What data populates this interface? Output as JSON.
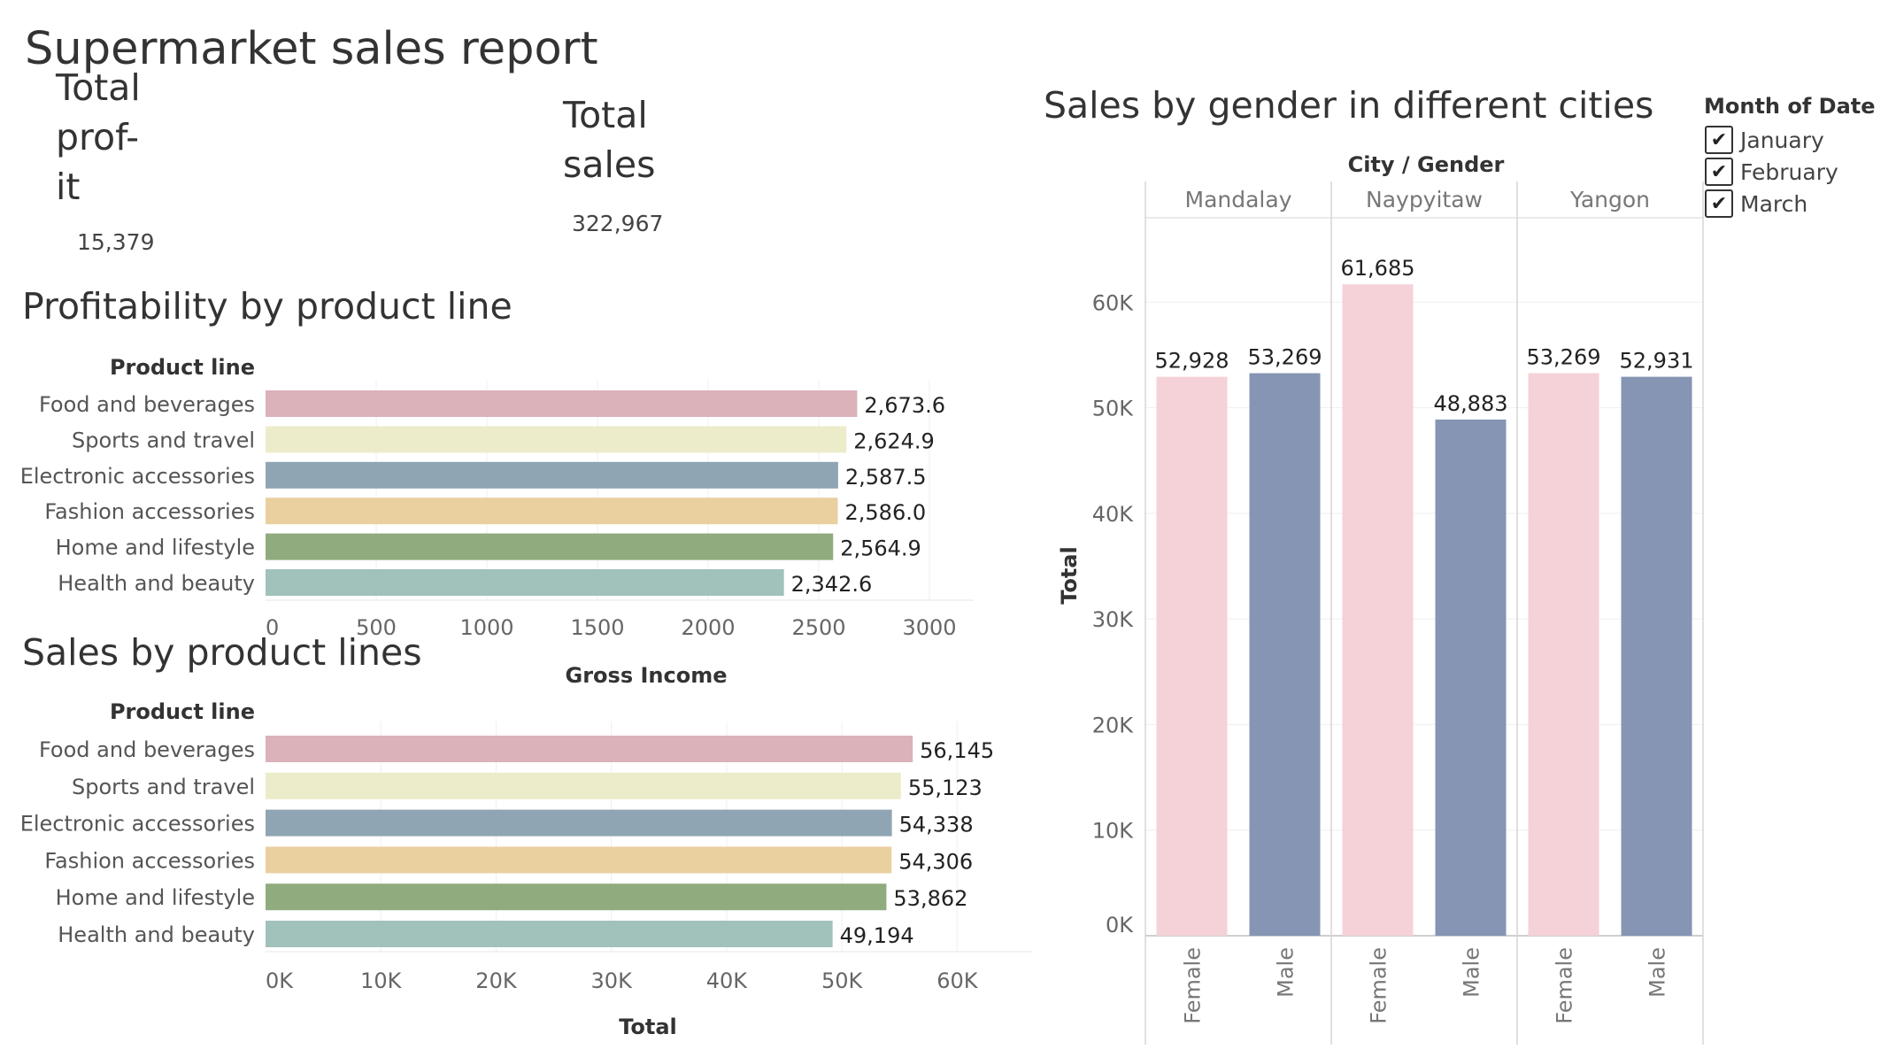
{
  "dashboard": {
    "title": "Supermarket sales report"
  },
  "kpis": {
    "profit": {
      "label_lines": [
        "Total",
        "prof-",
        "it"
      ],
      "value": "15,379"
    },
    "sales": {
      "label_lines": [
        "Total",
        "sales"
      ],
      "value": "322,967"
    }
  },
  "legend": {
    "title": "Month of Date",
    "items": [
      {
        "label": "January",
        "checked": true,
        "mark": "✔"
      },
      {
        "label": "February",
        "checked": true,
        "mark": "✔"
      },
      {
        "label": "March",
        "checked": true,
        "mark": "✔"
      }
    ]
  },
  "colors": {
    "product_lines": {
      "Food and beverages": "#dbb1ba",
      "Sports and travel": "#ececcb",
      "Electronic accessories": "#8fa5b3",
      "Fashion accessories": "#eacf9f",
      "Home and lifestyle": "#90ab7d",
      "Health and beauty": "#a1c1bb"
    },
    "gender": {
      "Female": "#f4d2d8",
      "Male": "#8595b3"
    }
  },
  "chart_data": [
    {
      "type": "bar",
      "orientation": "horizontal",
      "title": "Profitability by product line",
      "category_header": "Product line",
      "xlabel": "Gross Income",
      "categories": [
        "Food and beverages",
        "Sports and travel",
        "Electronic accessories",
        "Fashion accessories",
        "Home and lifestyle",
        "Health and beauty"
      ],
      "values": [
        2673.6,
        2624.9,
        2587.5,
        2586.0,
        2564.9,
        2342.6
      ],
      "value_labels": [
        "2,673.6",
        "2,624.9",
        "2,587.5",
        "2,586.0",
        "2,564.9",
        "2,342.6"
      ],
      "ticks": [
        0,
        500,
        1000,
        1500,
        2000,
        2500,
        3000
      ],
      "tick_labels": [
        "0",
        "500",
        "1000",
        "1500",
        "2000",
        "2500",
        "3000"
      ],
      "xlim": [
        0,
        3200
      ],
      "grid": true
    },
    {
      "type": "bar",
      "orientation": "horizontal",
      "title": "Sales by product lines",
      "category_header": "Product line",
      "xlabel": "Total",
      "categories": [
        "Food and beverages",
        "Sports and travel",
        "Electronic accessories",
        "Fashion accessories",
        "Home and lifestyle",
        "Health and beauty"
      ],
      "values": [
        56145,
        55123,
        54338,
        54306,
        53862,
        49194
      ],
      "value_labels": [
        "56,145",
        "55,123",
        "54,338",
        "54,306",
        "53,862",
        "49,194"
      ],
      "ticks": [
        0,
        10000,
        20000,
        30000,
        40000,
        50000,
        60000
      ],
      "tick_labels": [
        "0K",
        "10K",
        "20K",
        "30K",
        "40K",
        "50K",
        "60K"
      ],
      "xlim": [
        0,
        66500
      ],
      "grid": true
    },
    {
      "type": "bar",
      "orientation": "vertical",
      "title": "Sales by gender in different cities",
      "header": "City / Gender",
      "ylabel": "Total",
      "groups": [
        {
          "city": "Mandalay",
          "bars": [
            {
              "gender": "Female",
              "value": 52928,
              "label": "52,928"
            },
            {
              "gender": "Male",
              "value": 53269,
              "label": "53,269"
            }
          ]
        },
        {
          "city": "Naypyitaw",
          "bars": [
            {
              "gender": "Female",
              "value": 61685,
              "label": "61,685"
            },
            {
              "gender": "Male",
              "value": 48883,
              "label": "48,883"
            }
          ]
        },
        {
          "city": "Yangon",
          "bars": [
            {
              "gender": "Female",
              "value": 53269,
              "label": "53,269"
            },
            {
              "gender": "Male",
              "value": 52931,
              "label": "52,931"
            }
          ]
        }
      ],
      "ticks": [
        0,
        10000,
        20000,
        30000,
        40000,
        50000,
        60000
      ],
      "tick_labels": [
        "0K",
        "10K",
        "20K",
        "30K",
        "40K",
        "50K",
        "60K"
      ],
      "ylim": [
        0,
        70000
      ],
      "grid": true
    }
  ]
}
